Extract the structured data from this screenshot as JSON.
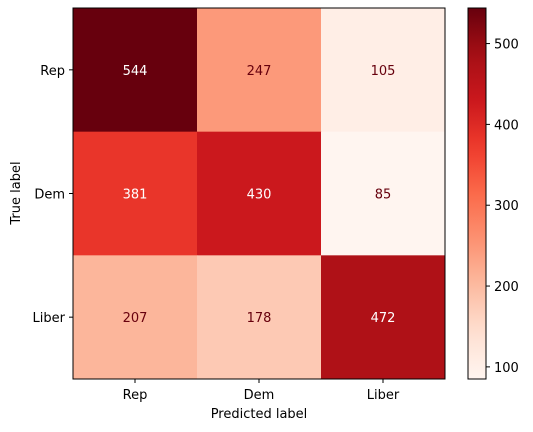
{
  "chart_data": {
    "type": "heatmap",
    "title": "",
    "xlabel": "Predicted label",
    "ylabel": "True label",
    "x_categories": [
      "Rep",
      "Dem",
      "Liber"
    ],
    "y_categories": [
      "Rep",
      "Dem",
      "Liber"
    ],
    "values": [
      [
        544,
        247,
        105
      ],
      [
        381,
        430,
        85
      ],
      [
        207,
        178,
        472
      ]
    ],
    "colormap": "Reds",
    "colorbar": {
      "vmin": 85,
      "vmax": 544,
      "ticks": [
        100,
        200,
        300,
        400,
        500
      ]
    },
    "grid": false,
    "legend": "colorbar-right"
  }
}
